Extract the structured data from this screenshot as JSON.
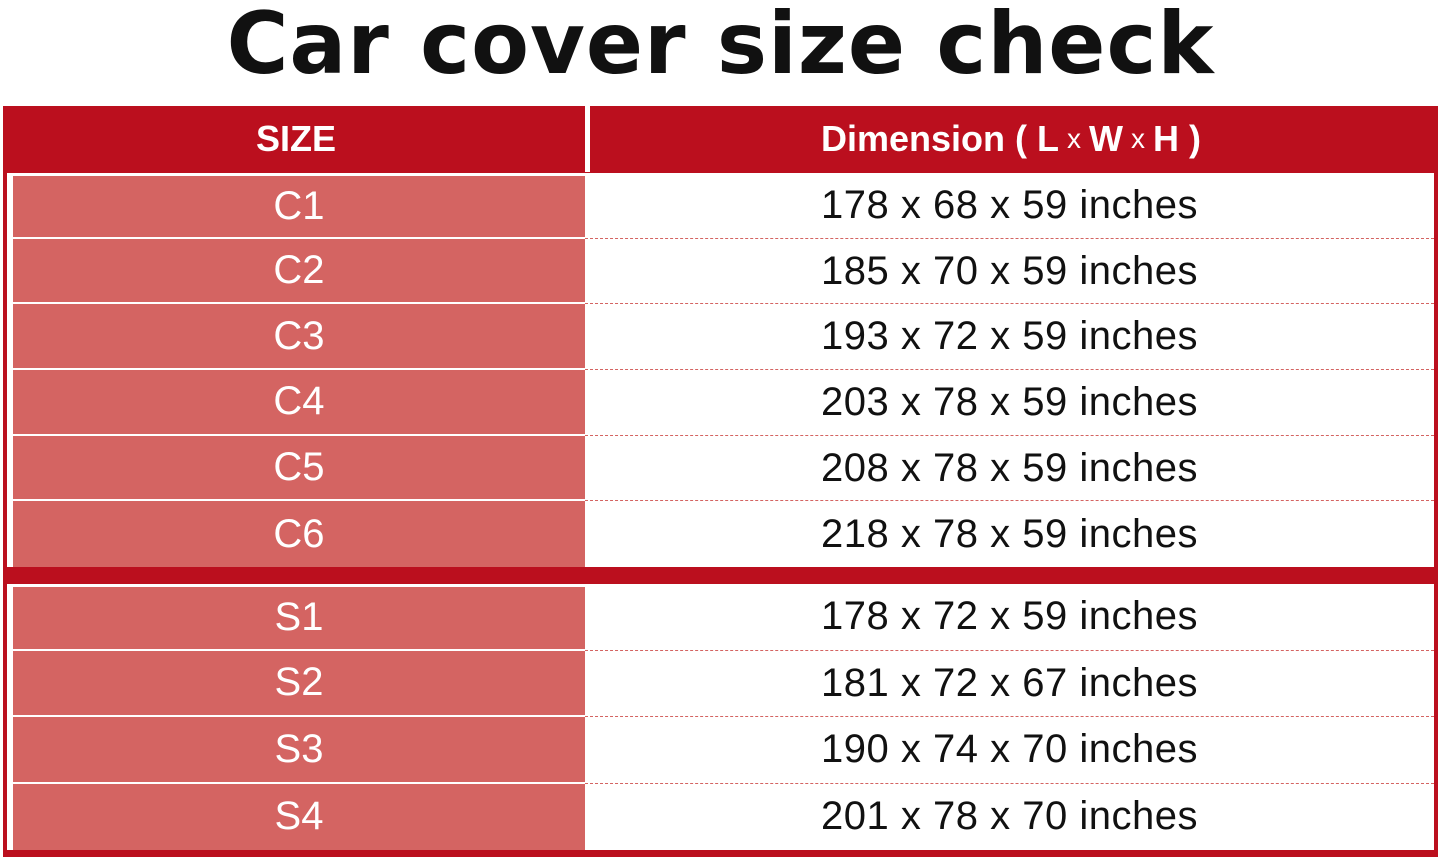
{
  "title": "Car cover size check",
  "header": {
    "size": "SIZE",
    "dimension_prefix": "Dimension ( L",
    "x1": "x",
    "w": "W",
    "x2": "x",
    "dimension_suffix": "H )"
  },
  "colors": {
    "header_red": "#bb0f1e",
    "size_cell": "#d46462"
  },
  "group1": [
    {
      "size": "C1",
      "dimension": "178 x 68 x 59 inches"
    },
    {
      "size": "C2",
      "dimension": "185 x 70 x 59 inches"
    },
    {
      "size": "C3",
      "dimension": "193 x 72 x 59 inches"
    },
    {
      "size": "C4",
      "dimension": "203 x 78 x 59 inches"
    },
    {
      "size": "C5",
      "dimension": "208 x 78 x 59 inches"
    },
    {
      "size": "C6",
      "dimension": "218 x 78 x 59 inches"
    }
  ],
  "group2": [
    {
      "size": "S1",
      "dimension": "178 x 72 x 59 inches"
    },
    {
      "size": "S2",
      "dimension": "181 x 72 x 67 inches"
    },
    {
      "size": "S3",
      "dimension": "190 x 74 x 70 inches"
    },
    {
      "size": "S4",
      "dimension": "201 x 78 x 70 inches"
    }
  ]
}
